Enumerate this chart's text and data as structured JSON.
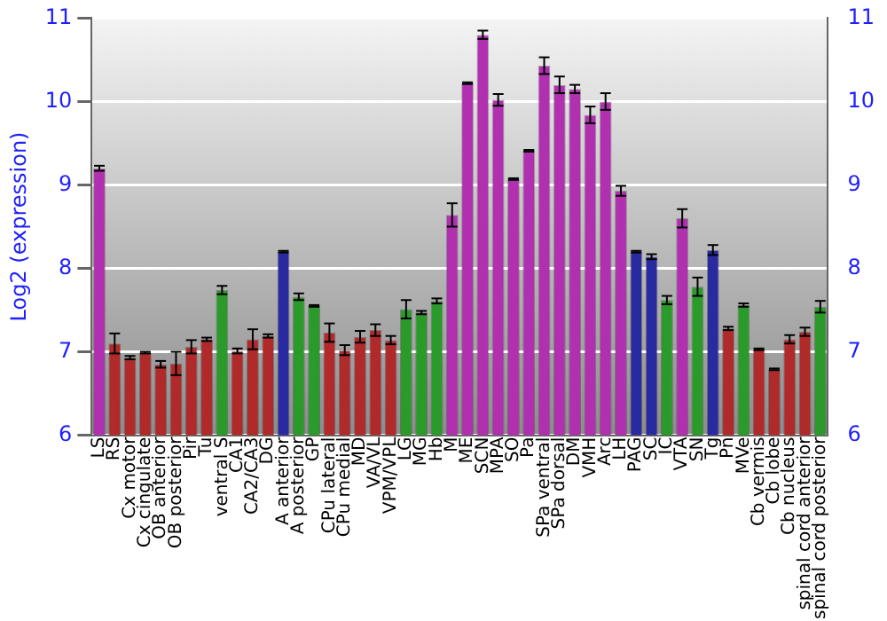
{
  "chart_data": {
    "type": "bar",
    "ylabel": "Log2 (expression)",
    "categories": [
      "LS",
      "RS",
      "Cx motor",
      "Cx cingulate",
      "OB anterior",
      "OB posterior",
      "Pir",
      "Tu",
      "ventral S",
      "CA1",
      "CA2/CA3",
      "DG",
      "A anterior",
      "A posterior",
      "GP",
      "CPu lateral",
      "CPu medial",
      "MD",
      "VA/VL",
      "VPM/VPL",
      "LG",
      "MG",
      "Hb",
      "M",
      "ME",
      "SCN",
      "MPA",
      "SO",
      "Pa",
      "SPa ventral",
      "SPa dorsal",
      "DM",
      "VMH",
      "Arc",
      "LH",
      "PAG",
      "SC",
      "IC",
      "VTA",
      "SN",
      "Tg",
      "Pn",
      "MVe",
      "Cb vermis",
      "Cb lobe",
      "Cb nucleus",
      "spinal cord anterior",
      "spinal cord posterior"
    ],
    "values": [
      9.2,
      7.1,
      6.93,
      6.99,
      6.85,
      6.86,
      7.06,
      7.15,
      7.74,
      7.01,
      7.15,
      7.19,
      8.2,
      7.66,
      7.55,
      7.23,
      7.02,
      7.18,
      7.26,
      7.14,
      7.51,
      7.47,
      7.61,
      8.64,
      10.22,
      10.8,
      10.02,
      9.07,
      9.41,
      10.43,
      10.2,
      10.15,
      9.84,
      10.0,
      8.93,
      8.2,
      8.14,
      7.62,
      8.6,
      7.78,
      8.22,
      7.28,
      7.56,
      7.03,
      6.79,
      7.15,
      7.24,
      7.54
    ],
    "errors": [
      0.03,
      0.12,
      0.02,
      0.01,
      0.04,
      0.14,
      0.08,
      0.02,
      0.05,
      0.03,
      0.12,
      0.02,
      0.01,
      0.04,
      0.01,
      0.11,
      0.06,
      0.07,
      0.07,
      0.05,
      0.11,
      0.02,
      0.03,
      0.14,
      0.01,
      0.05,
      0.07,
      0.01,
      0.01,
      0.1,
      0.1,
      0.05,
      0.1,
      0.1,
      0.06,
      0.01,
      0.03,
      0.05,
      0.11,
      0.11,
      0.06,
      0.02,
      0.02,
      0.01,
      0.01,
      0.05,
      0.05,
      0.07
    ],
    "colors": [
      "#b030b0",
      "#b02a2a",
      "#b02a2a",
      "#b02a2a",
      "#b02a2a",
      "#b02a2a",
      "#b02a2a",
      "#b02a2a",
      "#2a9a2a",
      "#b02a2a",
      "#b02a2a",
      "#b02a2a",
      "#2a2aa0",
      "#2a9a2a",
      "#2a9a2a",
      "#b02a2a",
      "#b02a2a",
      "#b02a2a",
      "#b02a2a",
      "#b02a2a",
      "#2a9a2a",
      "#2a9a2a",
      "#2a9a2a",
      "#b030b0",
      "#b030b0",
      "#b030b0",
      "#b030b0",
      "#b030b0",
      "#b030b0",
      "#b030b0",
      "#b030b0",
      "#b030b0",
      "#b030b0",
      "#b030b0",
      "#b030b0",
      "#2a2aa0",
      "#2a2aa0",
      "#2a9a2a",
      "#b030b0",
      "#2a9a2a",
      "#2a2aa0",
      "#b02a2a",
      "#2a9a2a",
      "#b02a2a",
      "#b02a2a",
      "#b02a2a",
      "#b02a2a",
      "#2a9a2a"
    ],
    "ylim": [
      6,
      11
    ],
    "yticks": [
      6,
      7,
      8,
      9,
      10,
      11
    ],
    "y2lim": [
      6,
      11
    ],
    "y2ticks": [
      6,
      7,
      8,
      9,
      10,
      11
    ],
    "grid": "y",
    "legend": false
  }
}
